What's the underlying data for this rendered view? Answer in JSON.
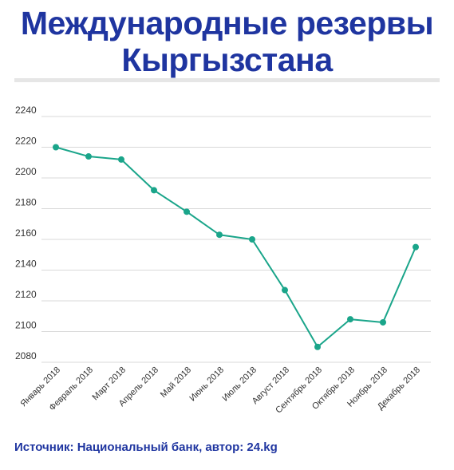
{
  "header": {
    "title_line1": "Международные резервы",
    "title_line2": "Кыргызстана"
  },
  "footer": {
    "source": "Источник: Национальный банк, автор: 24.kg"
  },
  "colors": {
    "title": "#1f35a0",
    "line": "#1aa58a",
    "grid": "#d9d9d9",
    "divider": "#e6e6e6"
  },
  "chart_data": {
    "type": "line",
    "title": "",
    "xlabel": "",
    "ylabel": "",
    "ylim": [
      2080,
      2240
    ],
    "yticks": [
      2080,
      2100,
      2120,
      2140,
      2160,
      2180,
      2200,
      2220,
      2240
    ],
    "grid": true,
    "legend": "none",
    "categories": [
      "Январь 2018",
      "Февраль 2018",
      "Март 2018",
      "Апрель 2018",
      "Май 2018",
      "Июнь 2018",
      "Июль 2018",
      "Август 2018",
      "Сентябрь 2018",
      "Октябрь 2018",
      "Ноябрь 2018",
      "Декабрь 2018"
    ],
    "series": [
      {
        "values": [
          2220,
          2214,
          2212,
          2192,
          2178,
          2163,
          2160,
          2127,
          2090,
          2108,
          2106,
          2155
        ]
      }
    ]
  }
}
